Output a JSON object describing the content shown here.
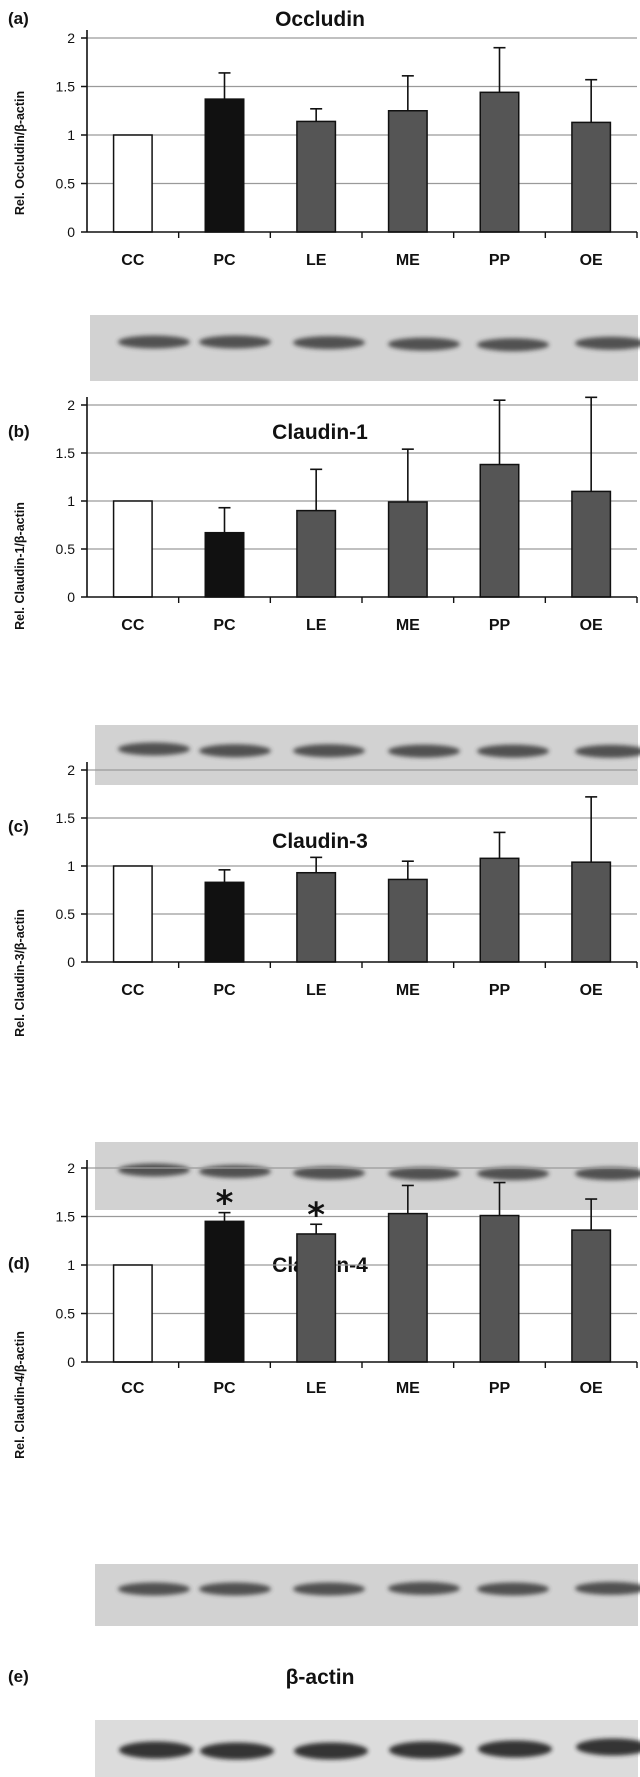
{
  "chart_data": [
    {
      "panel": "(a)",
      "type": "bar",
      "title": "Occludin",
      "ylabel": "Rel. Occludin/β-actin",
      "xlabel": "",
      "categories": [
        "CC",
        "PC",
        "LE",
        "ME",
        "PP",
        "OE"
      ],
      "values": [
        1.0,
        1.37,
        1.14,
        1.25,
        1.44,
        1.13
      ],
      "errors": [
        0.0,
        0.27,
        0.13,
        0.36,
        0.46,
        0.44
      ],
      "significance": [
        "",
        "",
        "",
        "",
        "",
        ""
      ],
      "bar_colors": [
        "#ffffff",
        "#111111",
        "#555555",
        "#555555",
        "#555555",
        "#555555"
      ],
      "ylim": [
        0,
        2
      ],
      "yticks": [
        "0",
        "0.5",
        "1",
        "1.5",
        "2"
      ],
      "grid": true,
      "legend": "none"
    },
    {
      "panel": "(b)",
      "type": "bar",
      "title": "Claudin-1",
      "ylabel": "Rel. Claudin-1/β-actin",
      "xlabel": "",
      "categories": [
        "CC",
        "PC",
        "LE",
        "ME",
        "PP",
        "OE"
      ],
      "values": [
        1.0,
        0.67,
        0.9,
        0.99,
        1.38,
        1.1
      ],
      "errors": [
        0.0,
        0.26,
        0.43,
        0.55,
        0.67,
        0.98
      ],
      "significance": [
        "",
        "",
        "",
        "",
        "",
        ""
      ],
      "bar_colors": [
        "#ffffff",
        "#111111",
        "#555555",
        "#555555",
        "#555555",
        "#555555"
      ],
      "ylim": [
        0,
        2
      ],
      "yticks": [
        "0",
        "0.5",
        "1",
        "1.5",
        "2"
      ],
      "grid": true,
      "legend": "none"
    },
    {
      "panel": "(c)",
      "type": "bar",
      "title": "Claudin-3",
      "ylabel": "Rel. Claudin-3/β-actin",
      "xlabel": "",
      "categories": [
        "CC",
        "PC",
        "LE",
        "ME",
        "PP",
        "OE"
      ],
      "values": [
        1.0,
        0.83,
        0.93,
        0.86,
        1.08,
        1.04
      ],
      "errors": [
        0.0,
        0.13,
        0.16,
        0.19,
        0.27,
        0.68
      ],
      "significance": [
        "",
        "",
        "",
        "",
        "",
        ""
      ],
      "bar_colors": [
        "#ffffff",
        "#111111",
        "#555555",
        "#555555",
        "#555555",
        "#555555"
      ],
      "ylim": [
        0,
        2
      ],
      "yticks": [
        "0",
        "0.5",
        "1",
        "1.5",
        "2"
      ],
      "grid": true,
      "legend": "none"
    },
    {
      "panel": "(d)",
      "type": "bar",
      "title": "Claudin-4",
      "ylabel": "Rel. Claudin-4/β-actin",
      "xlabel": "",
      "categories": [
        "CC",
        "PC",
        "LE",
        "ME",
        "PP",
        "OE"
      ],
      "values": [
        1.0,
        1.45,
        1.32,
        1.53,
        1.51,
        1.36
      ],
      "errors": [
        0.0,
        0.09,
        0.1,
        0.29,
        0.34,
        0.32
      ],
      "significance": [
        "",
        "*",
        "*",
        "",
        "",
        ""
      ],
      "bar_colors": [
        "#ffffff",
        "#111111",
        "#555555",
        "#555555",
        "#555555",
        "#555555"
      ],
      "ylim": [
        0,
        2
      ],
      "yticks": [
        "0",
        "0.5",
        "1",
        "1.5",
        "2"
      ],
      "grid": true,
      "legend": "none"
    }
  ],
  "actin_panel": {
    "panel": "(e)",
    "title": "β-actin"
  },
  "colors": {
    "axis": "#111111",
    "grid": "#9a9a9a",
    "blot_background": "#d2d2d2",
    "blot_band": "#3a3a3a"
  }
}
